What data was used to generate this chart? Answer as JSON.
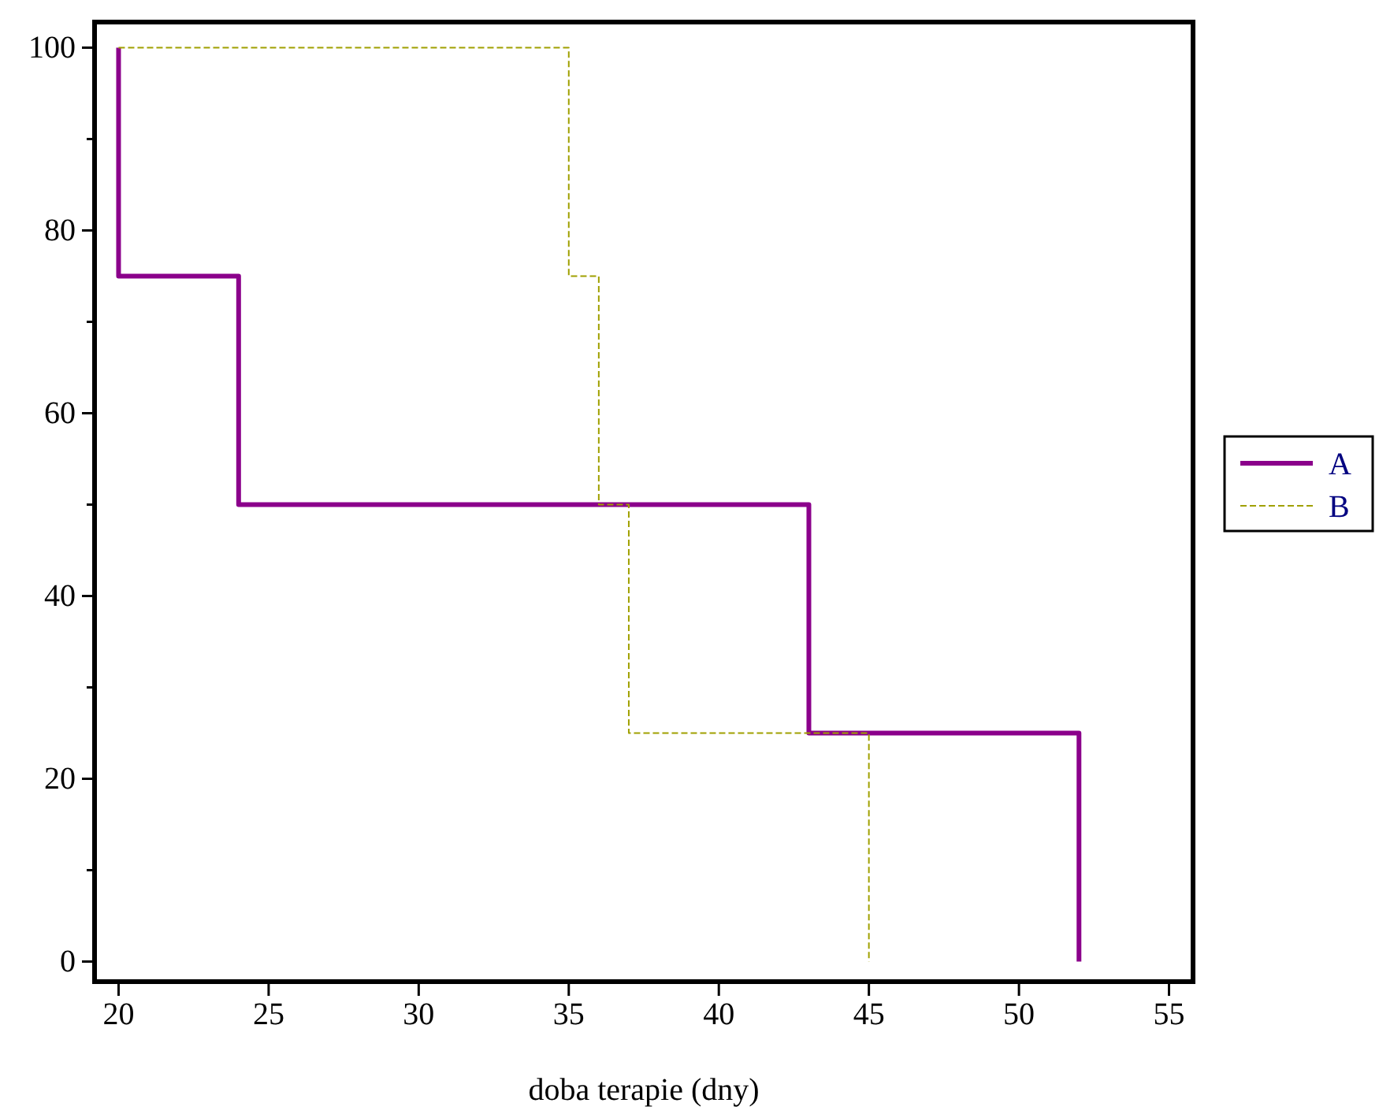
{
  "chart_data": {
    "type": "step",
    "xlabel": "doba terapie (dny)",
    "xlim": [
      19.2,
      55.8
    ],
    "ylim": [
      -2.2,
      102.8
    ],
    "xticks": [
      20,
      25,
      30,
      35,
      40,
      45,
      50,
      55
    ],
    "yticks": [
      0,
      {
        "value": 10,
        "label": null
      },
      20,
      {
        "value": 30,
        "label": null
      },
      40,
      {
        "value": 50,
        "label": null
      },
      60,
      {
        "value": 70,
        "label": null
      },
      80,
      {
        "value": 90,
        "label": null
      },
      100
    ],
    "legend": "right",
    "grid": false,
    "series": [
      {
        "name": "A",
        "color": "#8b008b",
        "line_style": "solid",
        "x": [
          20,
          20,
          24,
          43,
          52
        ],
        "values": [
          100,
          75,
          50,
          25,
          0
        ]
      },
      {
        "name": "B",
        "color": "#a0a000",
        "line_style": "dashed",
        "x": [
          20,
          35,
          36,
          37,
          45
        ],
        "values": [
          100,
          75,
          50,
          25,
          0
        ]
      }
    ]
  }
}
